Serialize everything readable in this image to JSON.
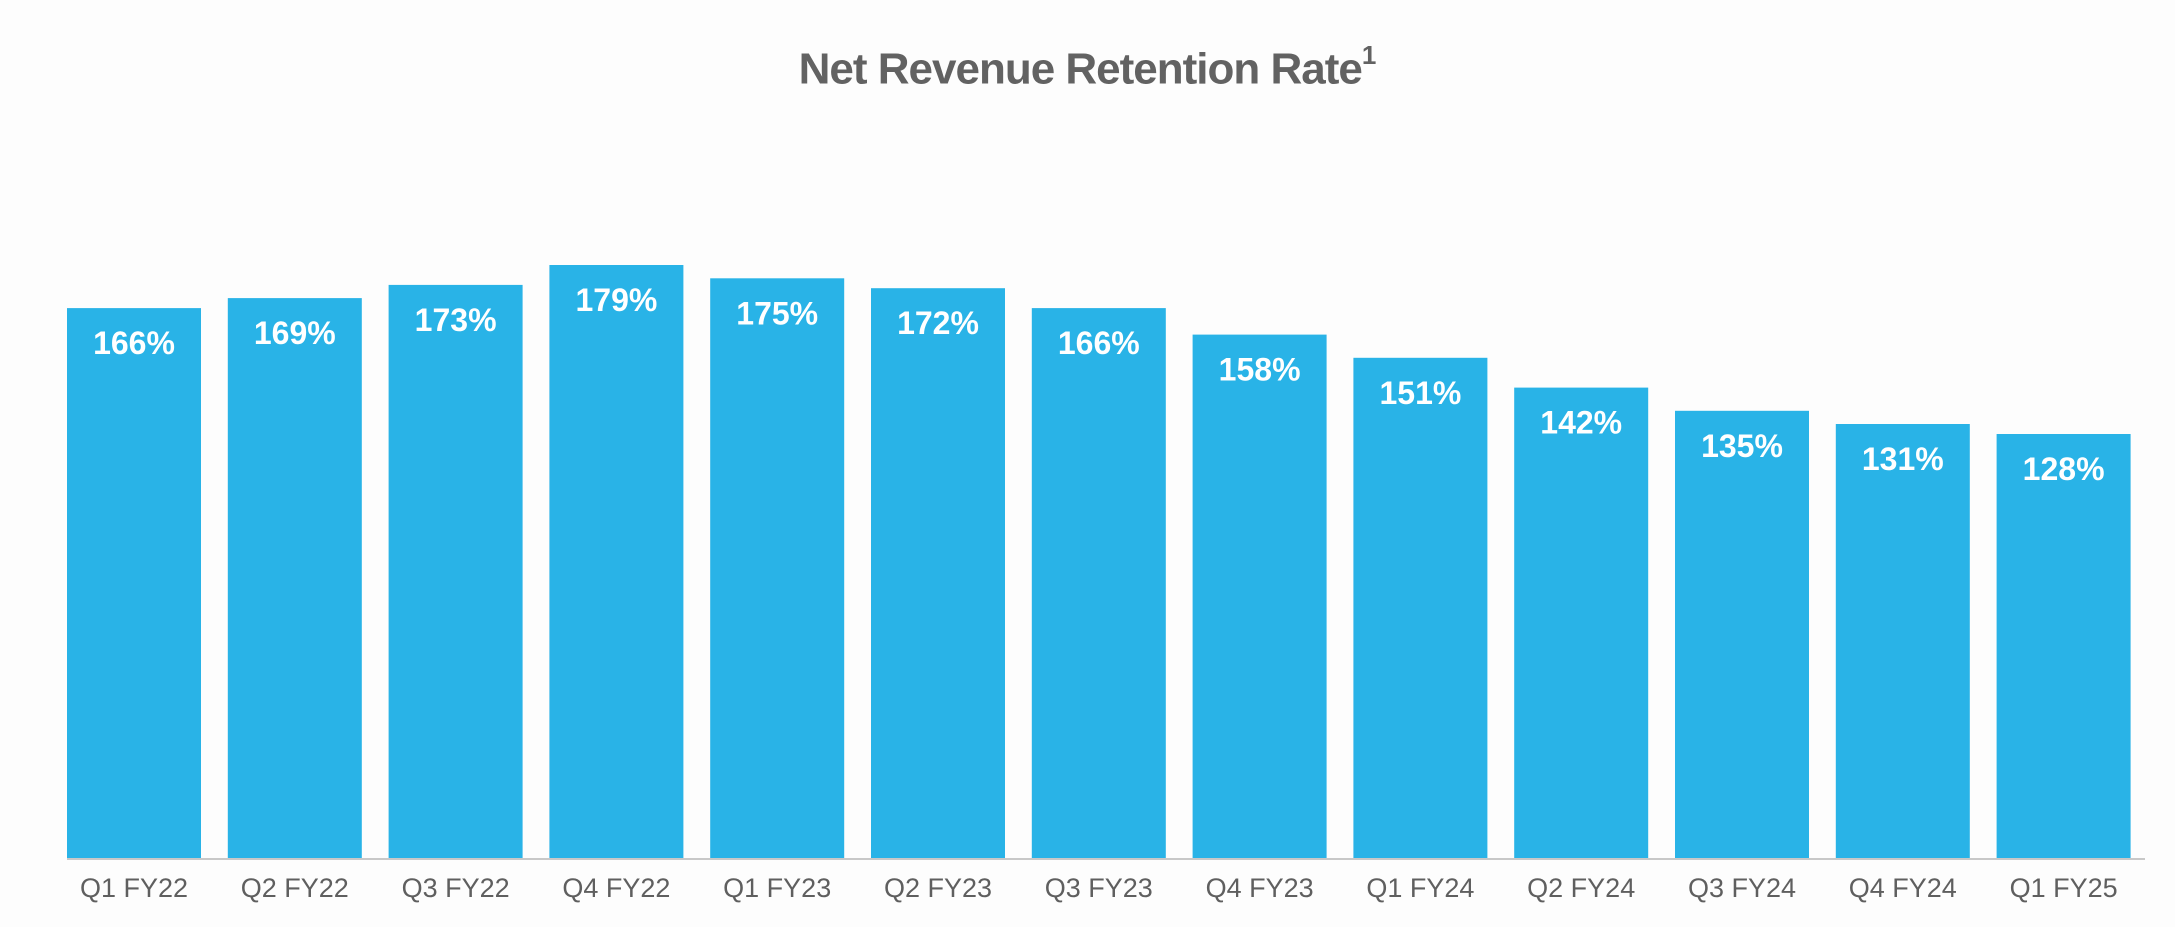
{
  "chart_data": {
    "type": "bar",
    "title": "Net Revenue Retention Rate",
    "title_superscript": "1",
    "categories": [
      "Q1 FY22",
      "Q2 FY22",
      "Q3 FY22",
      "Q4 FY22",
      "Q1 FY23",
      "Q2 FY23",
      "Q3 FY23",
      "Q4 FY23",
      "Q1 FY24",
      "Q2 FY24",
      "Q3 FY24",
      "Q4 FY24",
      "Q1 FY25"
    ],
    "values": [
      166,
      169,
      173,
      179,
      175,
      172,
      166,
      158,
      151,
      142,
      135,
      131,
      128
    ],
    "value_labels": [
      "166%",
      "169%",
      "173%",
      "179%",
      "175%",
      "172%",
      "166%",
      "158%",
      "151%",
      "142%",
      "135%",
      "131%",
      "128%"
    ],
    "unit": "%",
    "xlabel": "",
    "ylabel": "",
    "ylim": [
      0,
      259
    ],
    "grid": false,
    "legend": "none",
    "colors": {
      "bar": "#29b3e7",
      "label": "#ffffff",
      "tick": "#5f5f5f",
      "title": "#626262"
    }
  }
}
